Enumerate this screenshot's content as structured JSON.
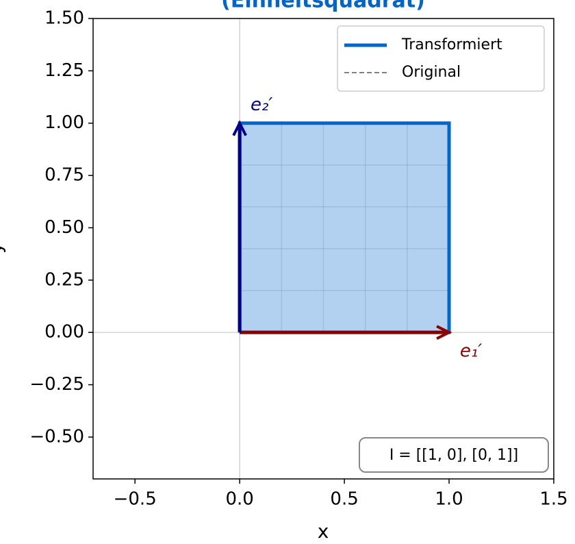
{
  "chart_data": {
    "type": "line",
    "title": "(Einheitsquadrat)",
    "xlabel": "x",
    "ylabel": "y",
    "series": [
      {
        "name": "Original",
        "color": "#808080",
        "dashed": true,
        "x": [
          0,
          1,
          1,
          0,
          0
        ],
        "y": [
          0,
          0,
          1,
          1,
          0
        ]
      },
      {
        "name": "Transformiert",
        "color": "#0066cc",
        "dashed": false,
        "fill": true,
        "x": [
          0,
          1,
          1,
          0,
          0
        ],
        "y": [
          0,
          0,
          1,
          1,
          0
        ]
      }
    ],
    "legend_order": [
      1,
      0
    ],
    "legend": "upper right",
    "inner_grid": [
      0.2,
      0.4,
      0.6,
      0.8
    ],
    "vectors": [
      {
        "label": "e₁′",
        "color": "#8b0000",
        "x": 1,
        "y": 0
      },
      {
        "label": "e₂′",
        "color": "#00008b",
        "x": 0,
        "y": 1
      }
    ],
    "annotation": "I = [[1, 0], [0, 1]]",
    "zero_lines": true,
    "xlim": [
      -0.7,
      1.5
    ],
    "ylim": [
      -0.7,
      1.5
    ],
    "xticks": [
      {
        "value": -0.5,
        "label": "−0.5"
      },
      {
        "value": 0,
        "label": "0.0"
      },
      {
        "value": 0.5,
        "label": "0.5"
      },
      {
        "value": 1,
        "label": "1.0"
      },
      {
        "value": 1.5,
        "label": "1.5"
      }
    ],
    "yticks": [
      {
        "value": -0.5,
        "label": "−0.50"
      },
      {
        "value": -0.25,
        "label": "−0.25"
      },
      {
        "value": 0,
        "label": "0.00"
      },
      {
        "value": 0.25,
        "label": "0.25"
      },
      {
        "value": 0.5,
        "label": "0.50"
      },
      {
        "value": 0.75,
        "label": "0.75"
      },
      {
        "value": 1,
        "label": "1.00"
      },
      {
        "value": 1.25,
        "label": "1.25"
      },
      {
        "value": 1.5,
        "label": "1.50"
      }
    ]
  }
}
